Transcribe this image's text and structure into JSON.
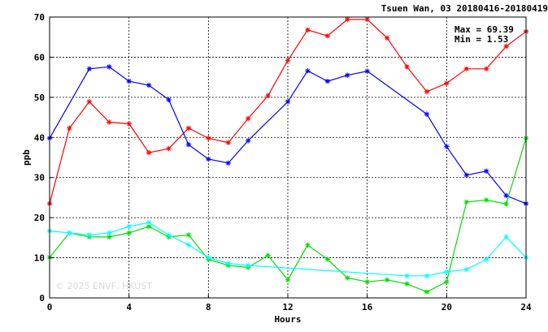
{
  "chart_data": {
    "type": "line",
    "title": "Tsuen Wan, 03 20180416-20180419",
    "xlabel": "Hours",
    "ylabel": "ppb",
    "xlim": [
      0,
      24
    ],
    "ylim": [
      0,
      70
    ],
    "xticks": [
      0,
      4,
      8,
      12,
      16,
      20,
      24
    ],
    "yticks": [
      0,
      10,
      20,
      30,
      40,
      50,
      60,
      70
    ],
    "grid": true,
    "stats": {
      "max": "Max = 69.39",
      "min": "Min =  1.53"
    },
    "watermark": "© 2025  ENVF, HKUST",
    "series": [
      {
        "color": "#ff0000",
        "x": [
          0,
          1,
          2,
          3,
          4,
          5,
          6,
          7,
          8,
          9,
          10,
          11,
          12,
          13,
          14,
          15,
          16,
          17,
          18,
          19,
          20,
          21,
          22,
          23,
          24
        ],
        "values": [
          23.5,
          42.3,
          48.9,
          43.8,
          43.4,
          36.2,
          37.2,
          42.3,
          39.8,
          38.7,
          44.7,
          50.4,
          59.2,
          66.8,
          65.3,
          69.4,
          69.4,
          64.8,
          57.6,
          51.4,
          53.5,
          57.1,
          57.1,
          62.7,
          66.4
        ]
      },
      {
        "color": "#0000ff",
        "x": [
          0,
          2,
          3,
          4,
          5,
          6,
          7,
          8,
          9,
          10,
          12,
          13,
          14,
          15,
          16,
          19,
          20,
          21,
          22,
          23,
          24
        ],
        "values": [
          39.8,
          57.1,
          57.6,
          54.0,
          53.0,
          49.4,
          38.2,
          34.6,
          33.6,
          39.2,
          48.9,
          56.6,
          54.0,
          55.5,
          56.5,
          45.8,
          37.7,
          30.6,
          31.6,
          25.5,
          23.5
        ]
      },
      {
        "color": "#00dd00",
        "x": [
          0,
          1,
          2,
          3,
          4,
          5,
          6,
          7,
          8,
          9,
          10,
          11,
          12,
          13,
          14,
          15,
          16,
          17,
          18,
          19,
          20,
          21,
          22,
          23,
          24
        ],
        "values": [
          10.1,
          16.2,
          15.2,
          15.2,
          16.2,
          17.8,
          15.2,
          15.7,
          9.6,
          8.1,
          7.6,
          10.6,
          4.5,
          13.2,
          9.6,
          5.0,
          4.0,
          4.5,
          3.5,
          1.5,
          4.0,
          23.9,
          24.4,
          23.4,
          39.8
        ]
      },
      {
        "color": "#00ffff",
        "x": [
          0,
          1,
          2,
          3,
          4,
          5,
          6,
          7,
          8,
          9,
          10,
          18,
          19,
          20,
          21,
          22,
          23,
          24
        ],
        "values": [
          16.7,
          16.2,
          15.7,
          16.2,
          17.8,
          18.8,
          15.7,
          13.2,
          10.1,
          8.6,
          8.1,
          5.5,
          5.5,
          6.5,
          7.1,
          9.6,
          15.2,
          10.1
        ]
      }
    ]
  }
}
